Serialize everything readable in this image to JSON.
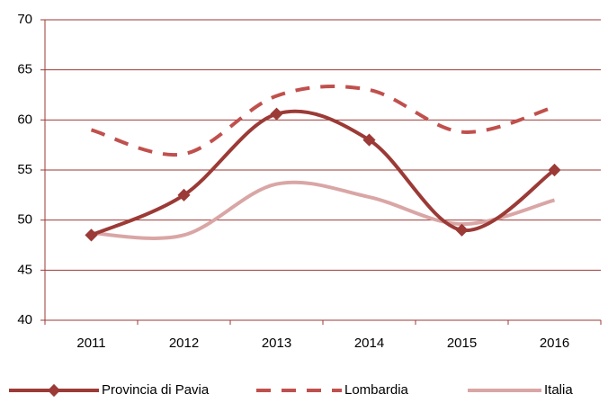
{
  "chart_data": {
    "type": "line",
    "categories": [
      "2011",
      "2012",
      "2013",
      "2014",
      "2015",
      "2016"
    ],
    "series": [
      {
        "name": "Provincia di Pavia",
        "color": "#9b3a36",
        "values": [
          48.5,
          52.5,
          60.6,
          58,
          49,
          55
        ]
      },
      {
        "name": "Lombardia",
        "color": "#c0504d",
        "values": [
          59,
          56.6,
          62.4,
          63,
          58.8,
          61.3
        ]
      },
      {
        "name": "Italia",
        "color": "#d9a6a5",
        "values": [
          48.7,
          48.5,
          53.6,
          52.3,
          49.6,
          52
        ]
      }
    ],
    "ylim": [
      40,
      70
    ],
    "yticks": [
      40,
      45,
      50,
      55,
      60,
      65,
      70
    ],
    "grid": true,
    "legend": "bottom"
  }
}
